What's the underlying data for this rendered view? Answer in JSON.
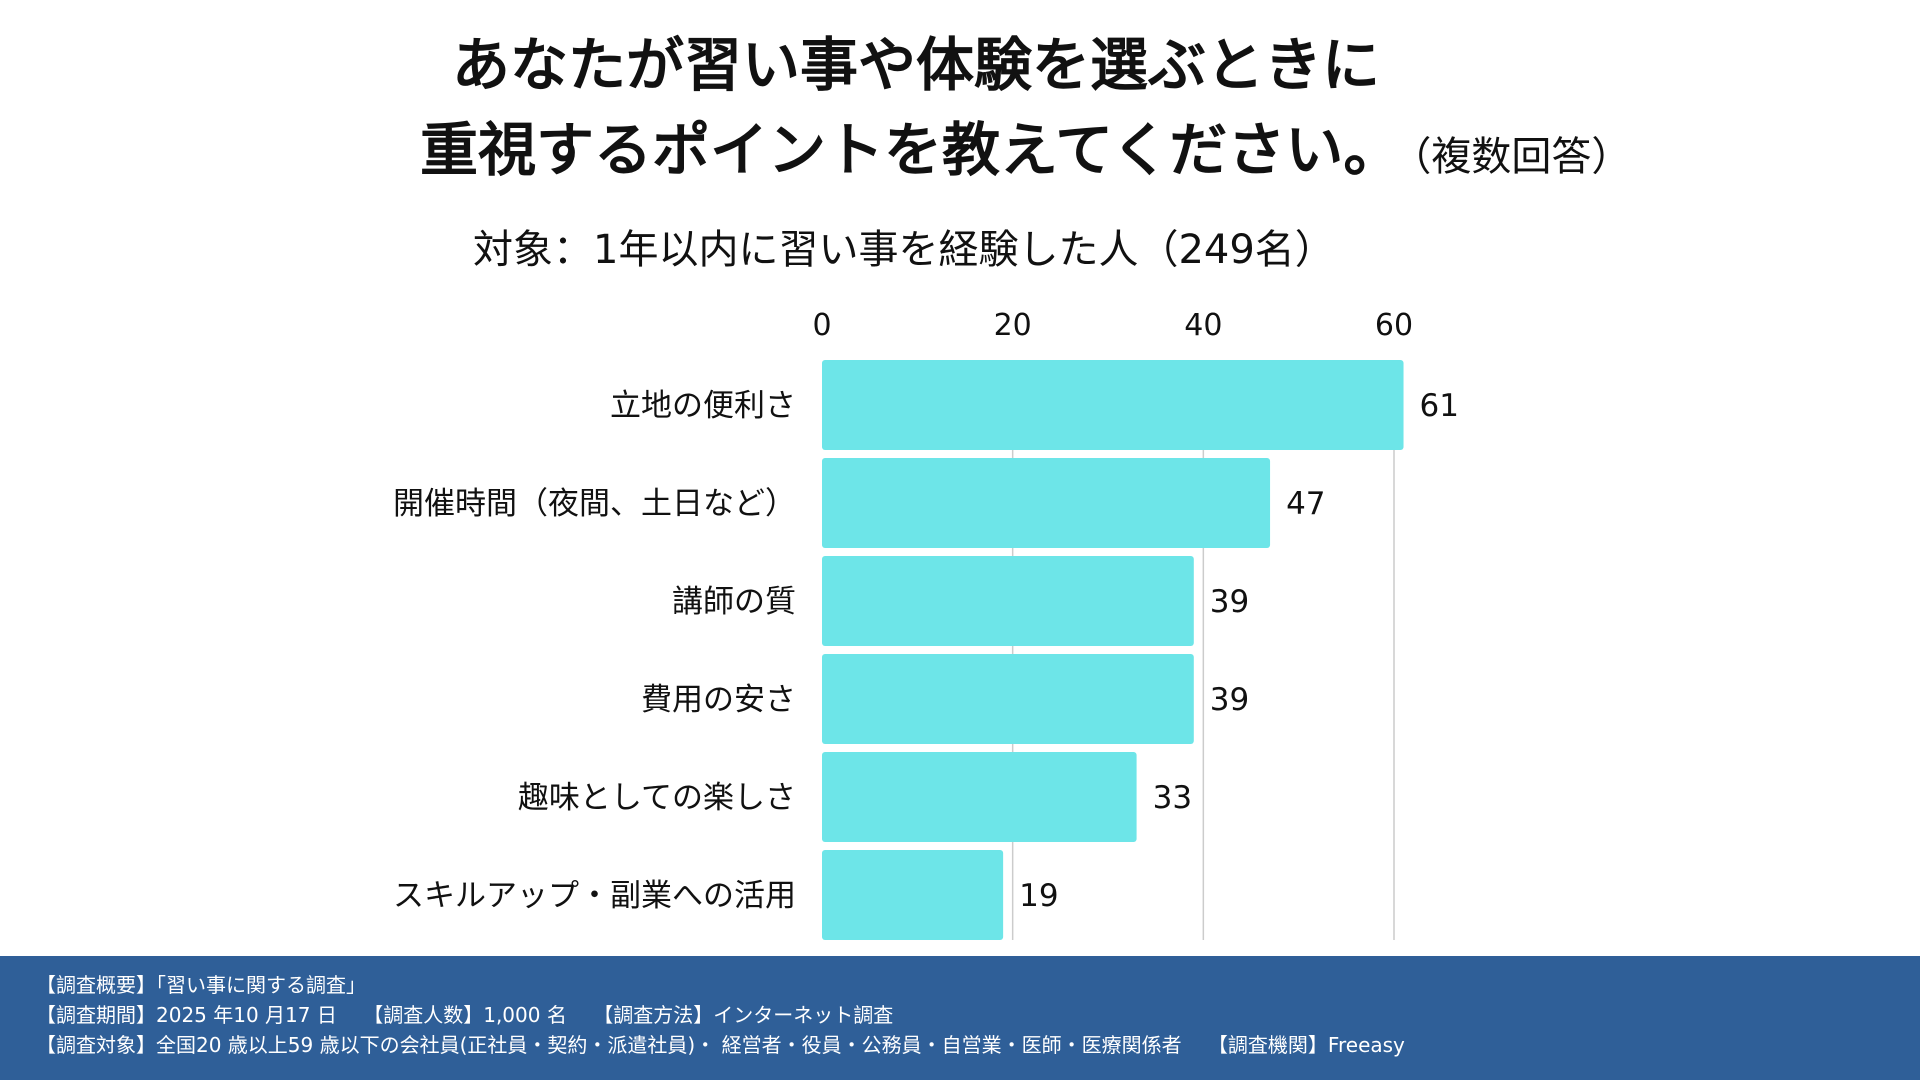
{
  "title": {
    "line1": "あなたが習い事や体験を選ぶときに",
    "line2": "重視するポイントを教えてください。",
    "note": "（複数回答）"
  },
  "subtitle": "対象：1年以内に習い事を経験した人（249名）",
  "chart_data": {
    "type": "bar",
    "orientation": "horizontal",
    "categories": [
      "立地の便利さ",
      "開催時間（夜間、土日など）",
      "講師の質",
      "費用の安さ",
      "趣味としての楽しさ",
      "スキルアップ・副業への活用"
    ],
    "values": [
      61,
      47,
      39,
      39,
      33,
      19
    ],
    "value_labels": [
      "61",
      "47",
      "39",
      "39",
      "33",
      "19"
    ],
    "x_ticks": [
      0,
      20,
      40,
      60
    ],
    "x_tick_labels": [
      "0",
      "20",
      "40",
      "60"
    ],
    "xlim": [
      0,
      60
    ],
    "x_axis_position": "top",
    "grid": true,
    "bar_color": "#6de5e8",
    "title": "あなたが習い事や体験を選ぶときに重視するポイントを教えてください。（複数回答）",
    "subtitle": "対象：1年以内に習い事を経験した人（249名）"
  },
  "footer": {
    "line1": "【調査概要】「習い事に関する調査」",
    "line2": "【調査期間】2025 年10 月17 日　 【調査人数】1,000 名　 【調査方法】インターネット調査",
    "line3": "【調査対象】全国20 歳以上59 歳以下の会社員(正社員・契約・派遣社員)・ 経営者・役員・公務員・自営業・医師・医療関係者　 【調査機関】Freeasy"
  },
  "colors": {
    "bar": "#6de5e8",
    "footer_bg": "#2f5f98",
    "grid": "#cccccc",
    "text": "#111111"
  }
}
